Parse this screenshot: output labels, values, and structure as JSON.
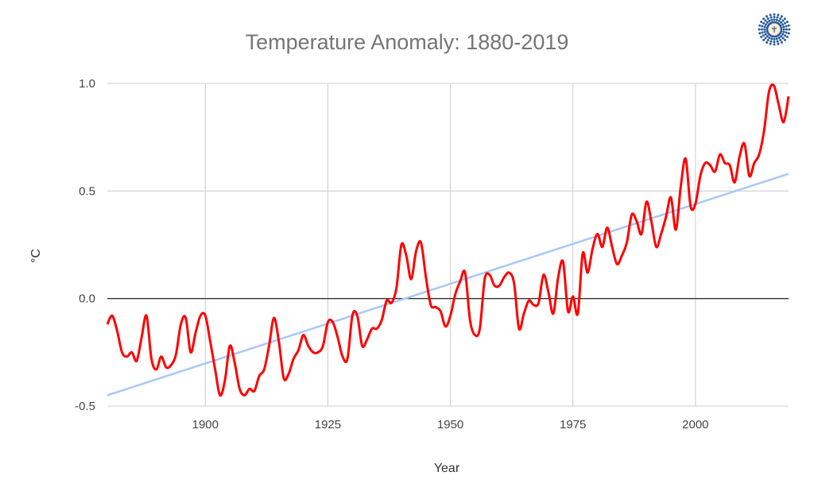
{
  "chart_data": {
    "type": "line",
    "title": "Temperature Anomaly: 1880-2019",
    "xlabel": "Year",
    "ylabel": "°C",
    "xlim": [
      1880,
      2019
    ],
    "ylim": [
      -0.5,
      1.0
    ],
    "x_ticks": [
      1900,
      1925,
      1950,
      1975,
      2000
    ],
    "y_ticks": [
      "1.0",
      "0.5",
      "0.0",
      "-0.5"
    ],
    "y_tick_values": [
      1.0,
      0.5,
      0.0,
      -0.5
    ],
    "grid": true,
    "legend": "none",
    "series": [
      {
        "color": "#ff0000",
        "smooth": true,
        "x_start": 1880,
        "values": [
          -0.12,
          -0.08,
          -0.15,
          -0.25,
          -0.27,
          -0.25,
          -0.29,
          -0.18,
          -0.08,
          -0.28,
          -0.33,
          -0.27,
          -0.32,
          -0.31,
          -0.26,
          -0.12,
          -0.09,
          -0.25,
          -0.16,
          -0.08,
          -0.08,
          -0.2,
          -0.33,
          -0.45,
          -0.38,
          -0.22,
          -0.3,
          -0.42,
          -0.45,
          -0.42,
          -0.43,
          -0.36,
          -0.33,
          -0.22,
          -0.09,
          -0.2,
          -0.37,
          -0.35,
          -0.28,
          -0.24,
          -0.17,
          -0.22,
          -0.25,
          -0.25,
          -0.22,
          -0.11,
          -0.11,
          -0.18,
          -0.27,
          -0.28,
          -0.08,
          -0.08,
          -0.22,
          -0.19,
          -0.14,
          -0.14,
          -0.1,
          -0.01,
          -0.02,
          0.05,
          0.25,
          0.2,
          0.09,
          0.22,
          0.26,
          0.1,
          -0.03,
          -0.04,
          -0.06,
          -0.13,
          -0.08,
          0.02,
          0.08,
          0.12,
          -0.1,
          -0.17,
          -0.14,
          0.09,
          0.11,
          0.06,
          0.06,
          0.1,
          0.12,
          0.07,
          -0.14,
          -0.07,
          -0.01,
          -0.03,
          -0.02,
          0.11,
          0.03,
          -0.07,
          0.1,
          0.17,
          -0.06,
          0.01,
          -0.07,
          0.21,
          0.12,
          0.23,
          0.3,
          0.24,
          0.33,
          0.24,
          0.16,
          0.2,
          0.26,
          0.39,
          0.36,
          0.3,
          0.45,
          0.36,
          0.24,
          0.3,
          0.38,
          0.47,
          0.32,
          0.52,
          0.65,
          0.43,
          0.44,
          0.57,
          0.63,
          0.62,
          0.59,
          0.67,
          0.63,
          0.62,
          0.54,
          0.66,
          0.72,
          0.57,
          0.63,
          0.67,
          0.78,
          0.96,
          0.99,
          0.9,
          0.82,
          0.94
        ]
      }
    ],
    "trendline": {
      "color": "#a8c7fa",
      "x": [
        1880,
        2019
      ],
      "y": [
        -0.45,
        0.58
      ]
    },
    "zero_line_color": "#333333",
    "grid_color": "#cccccc"
  },
  "logo": {
    "icon": "sunburst-logo-icon",
    "color": "#2a5a9a"
  }
}
